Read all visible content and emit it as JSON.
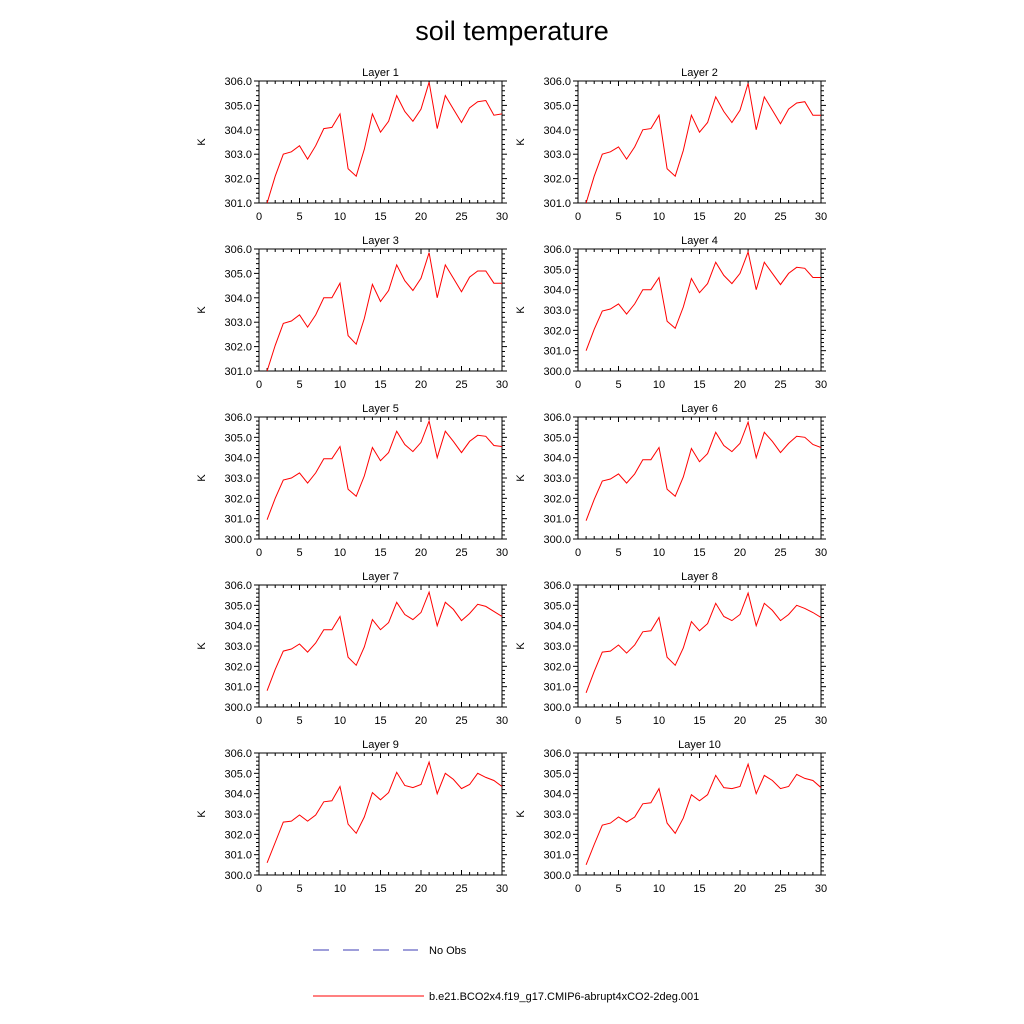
{
  "title": "soil temperature",
  "legend": [
    {
      "label": "No Obs",
      "color": "#3c3cb4",
      "dash": "dashed"
    },
    {
      "label": "b.e21.BCO2x4.f19_g17.CMIP6-abrupt4xCO2-2deg.001",
      "color": "#ff0000",
      "dash": "solid"
    }
  ],
  "chart_data": [
    {
      "type": "line",
      "title": "Layer 1",
      "xlabel": "",
      "ylabel": "K",
      "xlim": [
        0,
        30
      ],
      "ylim": [
        301,
        306
      ],
      "xticks": [
        0,
        5,
        10,
        15,
        20,
        25,
        30
      ],
      "yticks": [
        301,
        302,
        303,
        304,
        305,
        306
      ],
      "series": [
        {
          "name": "b.e21.BCO2x4.f19_g17.CMIP6-abrupt4xCO2-2deg.001",
          "color": "#ff0000",
          "x": [
            1,
            2,
            3,
            4,
            5,
            6,
            7,
            8,
            9,
            10,
            11,
            12,
            13,
            14,
            15,
            16,
            17,
            18,
            19,
            20,
            21,
            22,
            23,
            24,
            25,
            26,
            27,
            28,
            29,
            30
          ],
          "y": [
            301.0,
            302.1,
            303.0,
            303.1,
            303.35,
            302.8,
            303.35,
            304.05,
            304.1,
            304.65,
            302.4,
            302.1,
            303.2,
            304.65,
            303.9,
            304.35,
            305.4,
            304.75,
            304.35,
            304.85,
            305.95,
            304.05,
            305.4,
            304.85,
            304.3,
            304.9,
            305.15,
            305.2,
            304.6,
            304.65
          ]
        }
      ]
    },
    {
      "type": "line",
      "title": "Layer 2",
      "xlabel": "",
      "ylabel": "K",
      "xlim": [
        0,
        30
      ],
      "ylim": [
        301,
        306
      ],
      "xticks": [
        0,
        5,
        10,
        15,
        20,
        25,
        30
      ],
      "yticks": [
        301,
        302,
        303,
        304,
        305,
        306
      ],
      "series": [
        {
          "name": "b.e21.BCO2x4.f19_g17.CMIP6-abrupt4xCO2-2deg.001",
          "color": "#ff0000",
          "x": [
            1,
            2,
            3,
            4,
            5,
            6,
            7,
            8,
            9,
            10,
            11,
            12,
            13,
            14,
            15,
            16,
            17,
            18,
            19,
            20,
            21,
            22,
            23,
            24,
            25,
            26,
            27,
            28,
            29,
            30
          ],
          "y": [
            301.0,
            302.1,
            303.0,
            303.1,
            303.3,
            302.8,
            303.3,
            304.0,
            304.05,
            304.6,
            302.4,
            302.1,
            303.15,
            304.6,
            303.9,
            304.3,
            305.35,
            304.75,
            304.3,
            304.8,
            305.9,
            304.0,
            305.35,
            304.8,
            304.25,
            304.85,
            305.1,
            305.15,
            304.6,
            304.6
          ]
        }
      ]
    },
    {
      "type": "line",
      "title": "Layer 3",
      "xlabel": "",
      "ylabel": "K",
      "xlim": [
        0,
        30
      ],
      "ylim": [
        301,
        306
      ],
      "xticks": [
        0,
        5,
        10,
        15,
        20,
        25,
        30
      ],
      "yticks": [
        301,
        302,
        303,
        304,
        305,
        306
      ],
      "series": [
        {
          "name": "b.e21.BCO2x4.f19_g17.CMIP6-abrupt4xCO2-2deg.001",
          "color": "#ff0000",
          "x": [
            1,
            2,
            3,
            4,
            5,
            6,
            7,
            8,
            9,
            10,
            11,
            12,
            13,
            14,
            15,
            16,
            17,
            18,
            19,
            20,
            21,
            22,
            23,
            24,
            25,
            26,
            27,
            28,
            29,
            30
          ],
          "y": [
            301.0,
            302.05,
            302.95,
            303.05,
            303.3,
            302.8,
            303.3,
            304.0,
            304.0,
            304.6,
            302.45,
            302.1,
            303.15,
            304.55,
            303.85,
            304.3,
            305.35,
            304.7,
            304.3,
            304.8,
            305.85,
            304.0,
            305.35,
            304.8,
            304.25,
            304.85,
            305.1,
            305.1,
            304.6,
            304.6
          ]
        }
      ]
    },
    {
      "type": "line",
      "title": "Layer 4",
      "xlabel": "",
      "ylabel": "K",
      "xlim": [
        0,
        30
      ],
      "ylim": [
        300,
        306
      ],
      "xticks": [
        0,
        5,
        10,
        15,
        20,
        25,
        30
      ],
      "yticks": [
        300,
        301,
        302,
        303,
        304,
        305,
        306
      ],
      "series": [
        {
          "name": "b.e21.BCO2x4.f19_g17.CMIP6-abrupt4xCO2-2deg.001",
          "color": "#ff0000",
          "x": [
            1,
            2,
            3,
            4,
            5,
            6,
            7,
            8,
            9,
            10,
            11,
            12,
            13,
            14,
            15,
            16,
            17,
            18,
            19,
            20,
            21,
            22,
            23,
            24,
            25,
            26,
            27,
            28,
            29,
            30
          ],
          "y": [
            301.0,
            302.05,
            302.95,
            303.05,
            303.3,
            302.8,
            303.3,
            304.0,
            304.0,
            304.6,
            302.45,
            302.1,
            303.15,
            304.55,
            303.85,
            304.3,
            305.35,
            304.7,
            304.3,
            304.8,
            305.85,
            304.0,
            305.35,
            304.8,
            304.25,
            304.8,
            305.1,
            305.05,
            304.6,
            304.6
          ]
        }
      ]
    },
    {
      "type": "line",
      "title": "Layer 5",
      "xlabel": "",
      "ylabel": "K",
      "xlim": [
        0,
        30
      ],
      "ylim": [
        300,
        306
      ],
      "xticks": [
        0,
        5,
        10,
        15,
        20,
        25,
        30
      ],
      "yticks": [
        300,
        301,
        302,
        303,
        304,
        305,
        306
      ],
      "series": [
        {
          "name": "b.e21.BCO2x4.f19_g17.CMIP6-abrupt4xCO2-2deg.001",
          "color": "#ff0000",
          "x": [
            1,
            2,
            3,
            4,
            5,
            6,
            7,
            8,
            9,
            10,
            11,
            12,
            13,
            14,
            15,
            16,
            17,
            18,
            19,
            20,
            21,
            22,
            23,
            24,
            25,
            26,
            27,
            28,
            29,
            30
          ],
          "y": [
            300.95,
            302.0,
            302.9,
            303.0,
            303.25,
            302.75,
            303.25,
            303.95,
            303.95,
            304.55,
            302.45,
            302.1,
            303.1,
            304.5,
            303.85,
            304.25,
            305.3,
            304.65,
            304.3,
            304.75,
            305.8,
            304.0,
            305.3,
            304.8,
            304.25,
            304.8,
            305.1,
            305.05,
            304.6,
            304.55
          ]
        }
      ]
    },
    {
      "type": "line",
      "title": "Layer 6",
      "xlabel": "",
      "ylabel": "K",
      "xlim": [
        0,
        30
      ],
      "ylim": [
        300,
        306
      ],
      "xticks": [
        0,
        5,
        10,
        15,
        20,
        25,
        30
      ],
      "yticks": [
        300,
        301,
        302,
        303,
        304,
        305,
        306
      ],
      "series": [
        {
          "name": "b.e21.BCO2x4.f19_g17.CMIP6-abrupt4xCO2-2deg.001",
          "color": "#ff0000",
          "x": [
            1,
            2,
            3,
            4,
            5,
            6,
            7,
            8,
            9,
            10,
            11,
            12,
            13,
            14,
            15,
            16,
            17,
            18,
            19,
            20,
            21,
            22,
            23,
            24,
            25,
            26,
            27,
            28,
            29,
            30
          ],
          "y": [
            300.9,
            301.95,
            302.85,
            302.95,
            303.2,
            302.75,
            303.2,
            303.9,
            303.9,
            304.5,
            302.45,
            302.1,
            303.05,
            304.45,
            303.8,
            304.2,
            305.25,
            304.6,
            304.3,
            304.7,
            305.75,
            304.0,
            305.25,
            304.8,
            304.25,
            304.7,
            305.05,
            305.0,
            304.65,
            304.5
          ]
        }
      ]
    },
    {
      "type": "line",
      "title": "Layer 7",
      "xlabel": "",
      "ylabel": "K",
      "xlim": [
        0,
        30
      ],
      "ylim": [
        300,
        306
      ],
      "xticks": [
        0,
        5,
        10,
        15,
        20,
        25,
        30
      ],
      "yticks": [
        300,
        301,
        302,
        303,
        304,
        305,
        306
      ],
      "series": [
        {
          "name": "b.e21.BCO2x4.f19_g17.CMIP6-abrupt4xCO2-2deg.001",
          "color": "#ff0000",
          "x": [
            1,
            2,
            3,
            4,
            5,
            6,
            7,
            8,
            9,
            10,
            11,
            12,
            13,
            14,
            15,
            16,
            17,
            18,
            19,
            20,
            21,
            22,
            23,
            24,
            25,
            26,
            27,
            28,
            29,
            30
          ],
          "y": [
            300.8,
            301.85,
            302.75,
            302.85,
            303.1,
            302.7,
            303.15,
            303.8,
            303.8,
            304.45,
            302.45,
            302.05,
            302.95,
            304.3,
            303.8,
            304.15,
            305.15,
            304.55,
            304.3,
            304.65,
            305.65,
            304.0,
            305.15,
            304.8,
            304.25,
            304.6,
            305.05,
            304.95,
            304.7,
            304.45
          ]
        }
      ]
    },
    {
      "type": "line",
      "title": "Layer 8",
      "xlabel": "",
      "ylabel": "K",
      "xlim": [
        0,
        30
      ],
      "ylim": [
        300,
        306
      ],
      "xticks": [
        0,
        5,
        10,
        15,
        20,
        25,
        30
      ],
      "yticks": [
        300,
        301,
        302,
        303,
        304,
        305,
        306
      ],
      "series": [
        {
          "name": "b.e21.BCO2x4.f19_g17.CMIP6-abrupt4xCO2-2deg.001",
          "color": "#ff0000",
          "x": [
            1,
            2,
            3,
            4,
            5,
            6,
            7,
            8,
            9,
            10,
            11,
            12,
            13,
            14,
            15,
            16,
            17,
            18,
            19,
            20,
            21,
            22,
            23,
            24,
            25,
            26,
            27,
            28,
            29,
            30
          ],
          "y": [
            300.7,
            301.75,
            302.7,
            302.75,
            303.05,
            302.65,
            303.05,
            303.7,
            303.75,
            304.4,
            302.45,
            302.05,
            302.9,
            304.2,
            303.75,
            304.1,
            305.1,
            304.45,
            304.25,
            304.55,
            305.6,
            304.0,
            305.1,
            304.75,
            304.25,
            304.55,
            305.0,
            304.85,
            304.65,
            304.4
          ]
        }
      ]
    },
    {
      "type": "line",
      "title": "Layer 9",
      "xlabel": "",
      "ylabel": "K",
      "xlim": [
        0,
        30
      ],
      "ylim": [
        300,
        306
      ],
      "xticks": [
        0,
        5,
        10,
        15,
        20,
        25,
        30
      ],
      "yticks": [
        300,
        301,
        302,
        303,
        304,
        305,
        306
      ],
      "series": [
        {
          "name": "b.e21.BCO2x4.f19_g17.CMIP6-abrupt4xCO2-2deg.001",
          "color": "#ff0000",
          "x": [
            1,
            2,
            3,
            4,
            5,
            6,
            7,
            8,
            9,
            10,
            11,
            12,
            13,
            14,
            15,
            16,
            17,
            18,
            19,
            20,
            21,
            22,
            23,
            24,
            25,
            26,
            27,
            28,
            29,
            30
          ],
          "y": [
            300.6,
            301.6,
            302.6,
            302.65,
            302.95,
            302.65,
            302.95,
            303.6,
            303.65,
            304.35,
            302.5,
            302.05,
            302.85,
            304.05,
            303.7,
            304.05,
            305.05,
            304.4,
            304.3,
            304.45,
            305.55,
            304.0,
            305.0,
            304.7,
            304.25,
            304.45,
            305.0,
            304.8,
            304.65,
            304.35
          ]
        }
      ]
    },
    {
      "type": "line",
      "title": "Layer 10",
      "xlabel": "",
      "ylabel": "K",
      "xlim": [
        0,
        30
      ],
      "ylim": [
        300,
        306
      ],
      "xticks": [
        0,
        5,
        10,
        15,
        20,
        25,
        30
      ],
      "yticks": [
        300,
        301,
        302,
        303,
        304,
        305,
        306
      ],
      "series": [
        {
          "name": "b.e21.BCO2x4.f19_g17.CMIP6-abrupt4xCO2-2deg.001",
          "color": "#ff0000",
          "x": [
            1,
            2,
            3,
            4,
            5,
            6,
            7,
            8,
            9,
            10,
            11,
            12,
            13,
            14,
            15,
            16,
            17,
            18,
            19,
            20,
            21,
            22,
            23,
            24,
            25,
            26,
            27,
            28,
            29,
            30
          ],
          "y": [
            300.5,
            301.5,
            302.45,
            302.55,
            302.85,
            302.6,
            302.85,
            303.5,
            303.55,
            304.25,
            302.55,
            302.05,
            302.8,
            303.95,
            303.65,
            303.95,
            304.9,
            304.3,
            304.25,
            304.35,
            305.45,
            304.0,
            304.9,
            304.65,
            304.25,
            304.35,
            304.95,
            304.75,
            304.65,
            304.3
          ]
        }
      ]
    }
  ]
}
